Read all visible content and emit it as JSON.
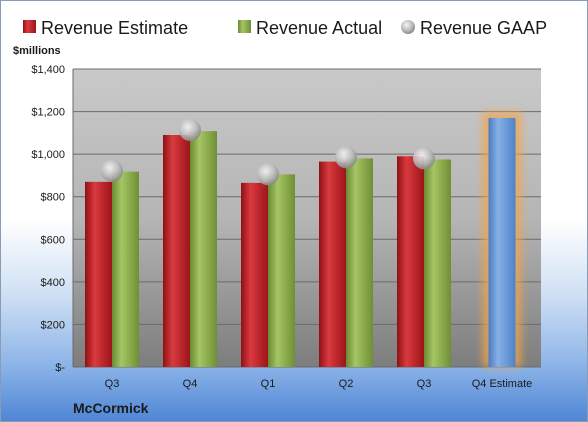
{
  "chart_data": {
    "type": "bar",
    "title": "",
    "unit_label": "$millions",
    "company": "McCormick",
    "categories": [
      "Q3",
      "Q4",
      "Q1",
      "Q2",
      "Q3",
      "Q4 Estimate"
    ],
    "series": [
      {
        "name": "Revenue Estimate",
        "values": [
          870,
          1090,
          865,
          965,
          990,
          null
        ],
        "color": "#c0262c"
      },
      {
        "name": "Revenue Actual",
        "values": [
          918,
          1108,
          905,
          980,
          975,
          null
        ],
        "color": "#8db04a"
      },
      {
        "name": "Revenue GAAP",
        "values": [
          921,
          1113,
          905,
          985,
          980,
          null
        ],
        "color": "#bfbfbf",
        "marker": "circle"
      }
    ],
    "forecast": {
      "category": "Q4 Estimate",
      "value": 1170,
      "color": "#6a9bd8",
      "highlight": "#f5a44a"
    },
    "ylim": [
      0,
      1400
    ],
    "yticks": [
      0,
      200,
      400,
      600,
      800,
      1000,
      1200,
      1400
    ],
    "ytick_labels": [
      "$-",
      "$200",
      "$400",
      "$600",
      "$800",
      "$1,000",
      "$1,200",
      "$1,400"
    ],
    "grid": true,
    "legend_position": "top"
  }
}
